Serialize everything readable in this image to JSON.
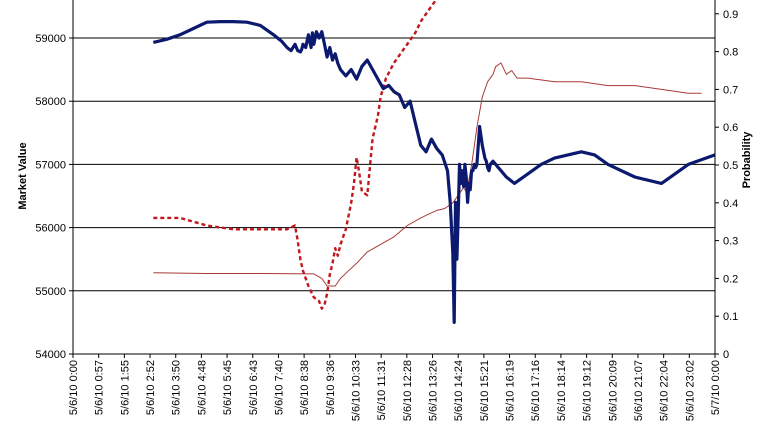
{
  "chart_data": {
    "type": "line",
    "title": "",
    "xlabel": "",
    "ylabel": "Market Value",
    "y2label": "Probability",
    "ylim": [
      54000,
      59500
    ],
    "y2lim": [
      0,
      0.95
    ],
    "yticks": [
      "54000",
      "55000",
      "56000",
      "57000",
      "58000",
      "59000"
    ],
    "y2ticks": [
      "0",
      "0.1",
      "0.2",
      "0.3",
      "0.4",
      "0.5",
      "0.6",
      "0.7",
      "0.8",
      "0.9"
    ],
    "x_tick_labels": [
      "5/6/10 0:00",
      "5/6/10 0:57",
      "5/6/10 1:55",
      "5/6/10 2:52",
      "5/6/10 3:50",
      "5/6/10 4:48",
      "5/6/10 5:45",
      "5/6/10 6:43",
      "5/6/10 7:40",
      "5/6/10 8:38",
      "5/6/10 9:36",
      "5/6/10 10:33",
      "5/6/10 11:31",
      "5/6/10 12:28",
      "5/6/10 13:26",
      "5/6/10 14:24",
      "5/6/10 15:21",
      "5/6/10 16:19",
      "5/6/10 17:16",
      "5/6/10 18:14",
      "5/6/10 19:12",
      "5/6/10 20:09",
      "5/6/10 21:07",
      "5/6/10 22:04",
      "5/6/10 23:02",
      "5/7/10 0:00"
    ],
    "grid": "horizontal",
    "colors": {
      "market": "#0b1a6e",
      "prob_solid": "#a83a3a",
      "prob_dotted": "#c0161c"
    },
    "series": [
      {
        "axis": "left",
        "style": "thick",
        "x": [
          3.0,
          3.5,
          4.0,
          4.5,
          5.0,
          5.5,
          6.0,
          6.5,
          7.0,
          7.5,
          7.8,
          8.0,
          8.15,
          8.3,
          8.4,
          8.5,
          8.55,
          8.6,
          8.7,
          8.8,
          8.9,
          8.95,
          9.0,
          9.1,
          9.2,
          9.3,
          9.4,
          9.5,
          9.6,
          9.7,
          9.8,
          9.9,
          10.0,
          10.2,
          10.4,
          10.6,
          10.8,
          11.0,
          11.2,
          11.4,
          11.6,
          11.8,
          12.0,
          12.2,
          12.4,
          12.6,
          12.8,
          13.0,
          13.2,
          13.4,
          13.6,
          13.8,
          14.0,
          14.1,
          14.2,
          14.25,
          14.3,
          14.35,
          14.4,
          14.45,
          14.5,
          14.55,
          14.6,
          14.65,
          14.7,
          14.75,
          14.8,
          14.85,
          14.9,
          14.95,
          15.0,
          15.05,
          15.1,
          15.2,
          15.3,
          15.35,
          15.4,
          15.45,
          15.5,
          15.55,
          15.6,
          15.7,
          15.8,
          15.9,
          16.0,
          16.2,
          16.5,
          17.0,
          17.5,
          18.0,
          18.5,
          19.0,
          19.5,
          20.0,
          21.0,
          22.0,
          23.0,
          24.0
        ],
        "y": [
          58930,
          58980,
          59050,
          59150,
          59250,
          59260,
          59260,
          59250,
          59200,
          59050,
          58950,
          58850,
          58800,
          58900,
          58800,
          58780,
          58820,
          58900,
          58850,
          59050,
          58850,
          59080,
          58900,
          59100,
          59000,
          59100,
          58900,
          58700,
          58850,
          58650,
          58750,
          58600,
          58500,
          58400,
          58500,
          58350,
          58550,
          58650,
          58500,
          58350,
          58200,
          58250,
          58150,
          58100,
          57900,
          58000,
          57650,
          57300,
          57200,
          57400,
          57250,
          57150,
          56900,
          56400,
          55600,
          54500,
          56400,
          55500,
          56200,
          57000,
          56700,
          56900,
          56650,
          57000,
          56800,
          56400,
          56700,
          56600,
          56900,
          56900,
          57000,
          56950,
          57000,
          57600,
          57300,
          57200,
          57100,
          57050,
          56950,
          56900,
          57000,
          57050,
          57000,
          56950,
          56900,
          56800,
          56700,
          56850,
          57000,
          57100,
          57150,
          57200,
          57150,
          57000,
          56800,
          56700,
          57000,
          57150
        ],
        "x_units": "hours since 5/6/10 0:00"
      },
      {
        "axis": "right",
        "style": "solid",
        "x": [
          3.0,
          5.0,
          7.0,
          9.0,
          9.3,
          9.5,
          9.8,
          10.0,
          10.3,
          10.6,
          11.0,
          11.5,
          12.0,
          12.5,
          13.0,
          13.3,
          13.6,
          13.9,
          14.2,
          14.4,
          14.6,
          14.7,
          14.8,
          14.9,
          15.0,
          15.1,
          15.2,
          15.3,
          15.5,
          15.7,
          15.8,
          16.0,
          16.2,
          16.4,
          16.6,
          17.0,
          18.0,
          19.0,
          20.0,
          21.0,
          22.0,
          23.0,
          23.5
        ],
        "y": [
          0.215,
          0.213,
          0.213,
          0.212,
          0.2,
          0.18,
          0.18,
          0.2,
          0.22,
          0.24,
          0.27,
          0.29,
          0.31,
          0.34,
          0.36,
          0.37,
          0.38,
          0.385,
          0.4,
          0.42,
          0.44,
          0.43,
          0.46,
          0.5,
          0.55,
          0.6,
          0.64,
          0.68,
          0.72,
          0.74,
          0.76,
          0.77,
          0.74,
          0.75,
          0.73,
          0.73,
          0.72,
          0.72,
          0.71,
          0.71,
          0.7,
          0.69,
          0.69
        ],
        "x_units": "hours since 5/6/10 0:00"
      },
      {
        "axis": "right",
        "style": "dotted",
        "x": [
          3.0,
          4.0,
          5.0,
          6.0,
          7.0,
          8.0,
          8.3,
          8.4,
          8.5,
          8.6,
          8.8,
          9.0,
          9.2,
          9.3,
          9.4,
          9.5,
          9.6,
          9.7,
          9.8,
          9.9,
          10.0,
          10.2,
          10.4,
          10.5,
          10.6,
          10.7,
          10.8,
          11.0,
          11.2,
          11.4,
          11.5,
          11.7,
          12.0,
          12.2,
          12.5,
          12.8,
          13.0,
          13.3,
          13.6,
          14.0,
          14.2
        ],
        "y": [
          0.36,
          0.36,
          0.34,
          0.33,
          0.33,
          0.33,
          0.34,
          0.3,
          0.25,
          0.22,
          0.18,
          0.15,
          0.14,
          0.12,
          0.13,
          0.16,
          0.21,
          0.24,
          0.28,
          0.26,
          0.29,
          0.33,
          0.4,
          0.45,
          0.52,
          0.48,
          0.43,
          0.42,
          0.57,
          0.63,
          0.68,
          0.73,
          0.77,
          0.79,
          0.82,
          0.85,
          0.88,
          0.91,
          0.94,
          0.94,
          0.95
        ],
        "x_units": "hours since 5/6/10 0:00"
      }
    ]
  }
}
